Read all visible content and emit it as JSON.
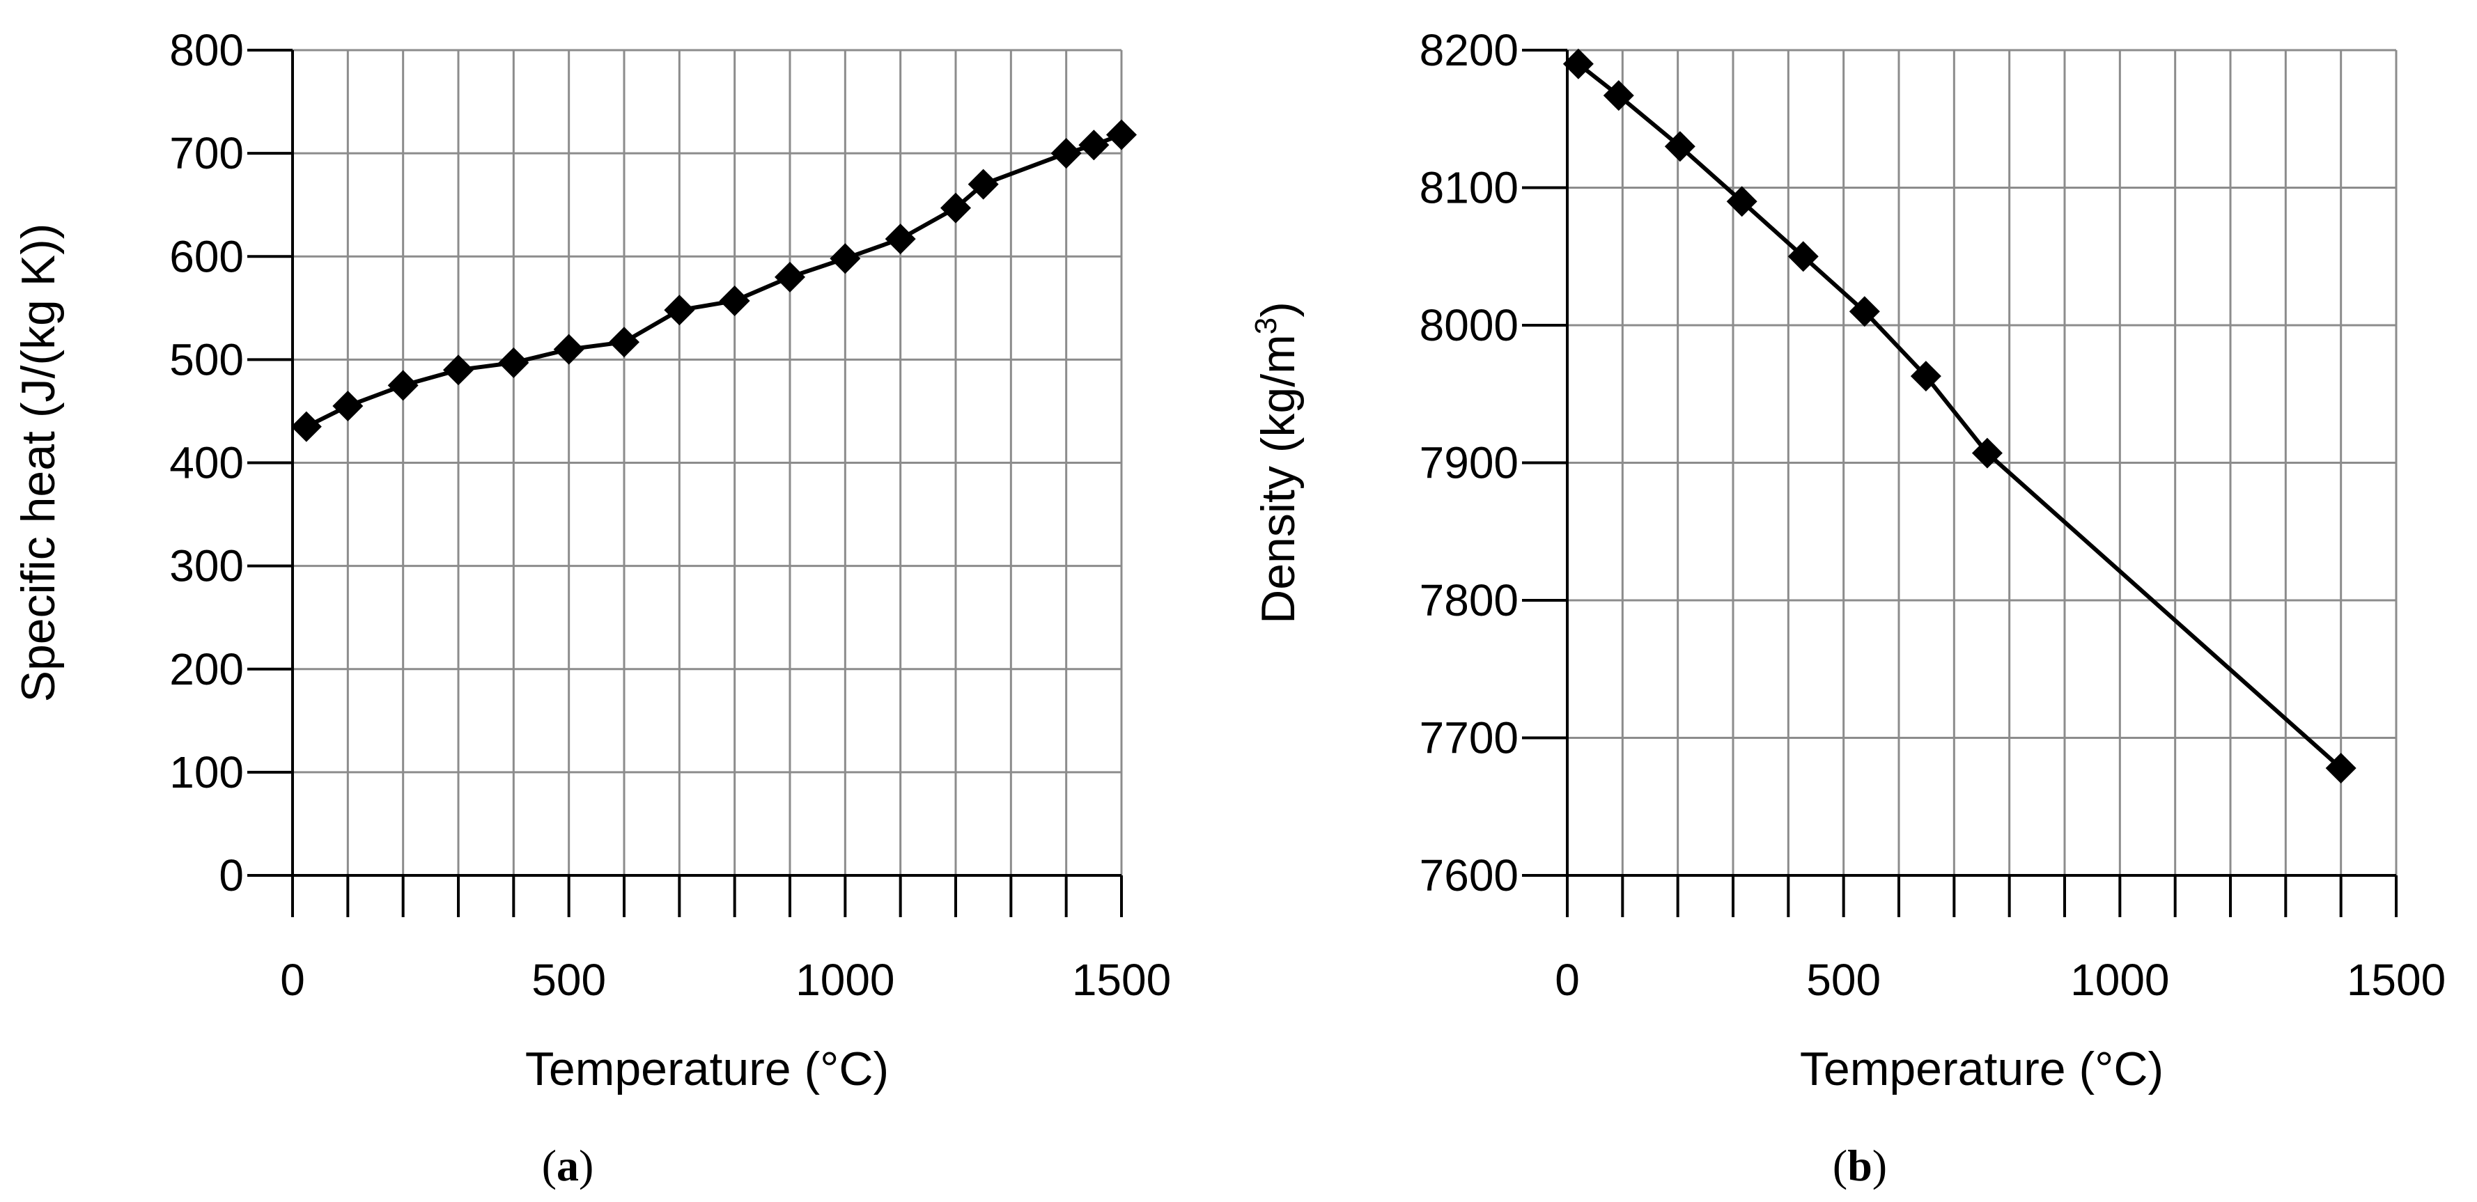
{
  "chart_data": [
    {
      "id": "a",
      "type": "line",
      "panel_label": "a",
      "xlabel": "Temperature (°C)",
      "ylabel": "Specific heat (J/(kg K))",
      "xlim": [
        0,
        1500
      ],
      "ylim": [
        0,
        800
      ],
      "xticks": [
        0,
        500,
        1000,
        1500
      ],
      "yticks": [
        0,
        100,
        200,
        300,
        400,
        500,
        600,
        700,
        800
      ],
      "grid": true,
      "x_minor_step": 100,
      "series": [
        {
          "name": "Specific heat",
          "marker": "diamond",
          "x": [
            25,
            100,
            200,
            300,
            400,
            500,
            600,
            700,
            800,
            900,
            1000,
            1100,
            1200,
            1250,
            1400,
            1450,
            1500
          ],
          "y": [
            435,
            455,
            475,
            490,
            497,
            510,
            517,
            548,
            557,
            580,
            598,
            617,
            647,
            670,
            700,
            708,
            718
          ]
        }
      ]
    },
    {
      "id": "b",
      "type": "line",
      "panel_label": "b",
      "xlabel": "Temperature (°C)",
      "ylabel_main": "Density (kg/m",
      "ylabel_sup": "3",
      "ylabel_end": ")",
      "xlim": [
        0,
        1500
      ],
      "ylim": [
        7600,
        8200
      ],
      "xticks": [
        0,
        500,
        1000,
        1500
      ],
      "yticks": [
        7600,
        7700,
        7800,
        7900,
        8000,
        8100,
        8200
      ],
      "grid": true,
      "x_minor_step": 100,
      "series": [
        {
          "name": "Density",
          "marker": "diamond",
          "x": [
            20,
            93,
            204,
            316,
            427,
            538,
            649,
            760,
            1400
          ],
          "y": [
            8190,
            8167,
            8130,
            8090,
            8050,
            8010,
            7963,
            7907,
            7678
          ]
        }
      ]
    }
  ]
}
